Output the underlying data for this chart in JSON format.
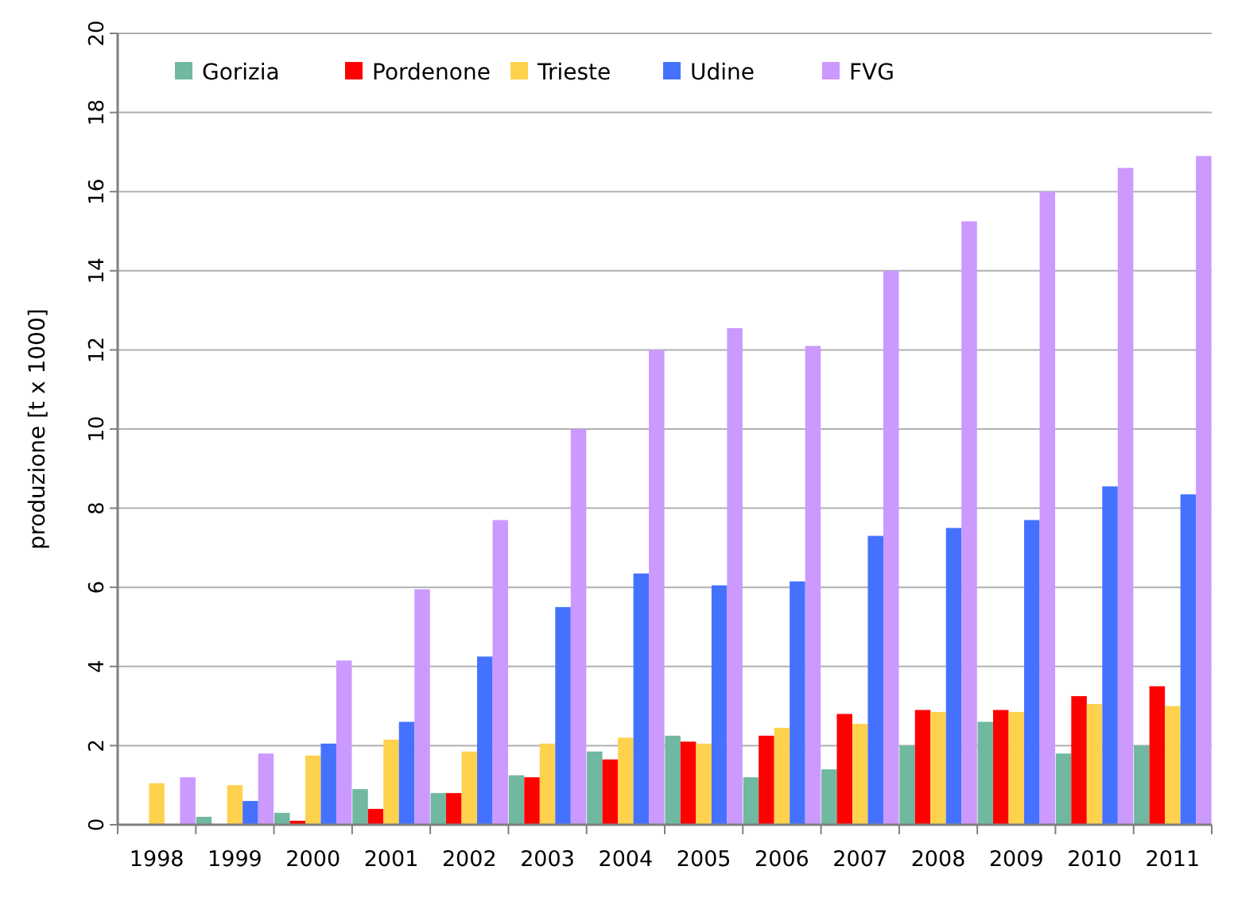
{
  "chart_data": {
    "type": "bar",
    "ylabel": "produzione [t x 1000]",
    "categories": [
      "1998",
      "1999",
      "2000",
      "2001",
      "2002",
      "2003",
      "2004",
      "2005",
      "2006",
      "2007",
      "2008",
      "2009",
      "2010",
      "2011"
    ],
    "series": [
      {
        "name": "Gorizia",
        "color": "#70b8a0",
        "values": [
          null,
          0.2,
          0.3,
          0.9,
          0.8,
          1.25,
          1.85,
          2.25,
          1.2,
          1.4,
          2.0,
          2.6,
          1.8,
          2.0
        ]
      },
      {
        "name": "Pordenone",
        "color": "#ff0000",
        "values": [
          0,
          0,
          0.1,
          0.4,
          0.8,
          1.2,
          1.65,
          2.1,
          2.25,
          2.8,
          2.9,
          2.9,
          3.25,
          3.5
        ]
      },
      {
        "name": "Trieste",
        "color": "#ffd24d",
        "values": [
          1.05,
          1.0,
          1.75,
          2.15,
          1.85,
          2.05,
          2.2,
          2.05,
          2.45,
          2.55,
          2.85,
          2.85,
          3.05,
          3.0
        ]
      },
      {
        "name": "Udine",
        "color": "#4472ff",
        "values": [
          0,
          0.6,
          2.05,
          2.6,
          4.25,
          5.5,
          6.35,
          6.05,
          6.15,
          7.3,
          7.5,
          7.7,
          8.55,
          8.35
        ]
      },
      {
        "name": "FVG",
        "color": "#cc99ff",
        "values": [
          1.2,
          1.8,
          4.15,
          5.95,
          7.7,
          10.0,
          12.0,
          12.55,
          12.1,
          14.0,
          15.25,
          16.0,
          16.6,
          16.9
        ]
      }
    ],
    "ylim": [
      0,
      20
    ],
    "yticks": [
      0,
      2,
      4,
      6,
      8,
      10,
      12,
      14,
      16,
      18,
      20
    ],
    "grid": "y",
    "legend": "top left"
  }
}
